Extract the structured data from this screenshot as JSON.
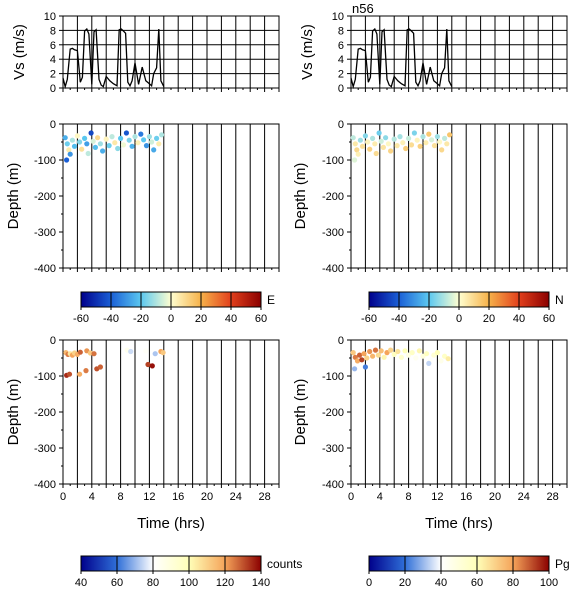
{
  "station_label": "n56",
  "labels": {
    "vs_ylabel": "Vs (m/s)",
    "depth_ylabel": "Depth (m)",
    "time_xlabel": "Time (hrs)"
  },
  "chart_data": [
    {
      "id": "vs-left",
      "type": "line",
      "xlim": [
        0,
        30
      ],
      "ylim": [
        0,
        10
      ],
      "yticks": [
        0,
        2,
        4,
        6,
        8,
        10
      ],
      "x": [
        0,
        0.3,
        0.6,
        1.0,
        1.3,
        1.6,
        2.0,
        2.4,
        2.7,
        3.0,
        3.3,
        3.6,
        4.0,
        4.3,
        4.6,
        5.0,
        5.3,
        5.6,
        6.0,
        6.5,
        7.0,
        7.5,
        7.8,
        8.1,
        8.4,
        8.7,
        9.0,
        9.3,
        9.6,
        10.0,
        10.5,
        11.0,
        11.5,
        12.0,
        12.3,
        12.6,
        13.0,
        13.3,
        13.6,
        14.0
      ],
      "y": [
        1.4,
        0.2,
        1.2,
        5.4,
        5.5,
        5.3,
        5.2,
        0.8,
        1.5,
        7.9,
        8.2,
        7.5,
        0.5,
        7.8,
        8.1,
        1.2,
        0.4,
        0.2,
        1.6,
        1.0,
        0.6,
        0.3,
        8.1,
        8.2,
        7.9,
        7.6,
        0.8,
        0.3,
        1.0,
        3.5,
        0.5,
        2.9,
        1.0,
        0.6,
        0.3,
        2.0,
        2.8,
        8.2,
        1.0,
        0.2
      ]
    },
    {
      "id": "vs-right",
      "type": "line",
      "xlim": [
        0,
        30
      ],
      "ylim": [
        0,
        10
      ],
      "yticks": [
        0,
        2,
        4,
        6,
        8,
        10
      ],
      "x": [
        0,
        0.3,
        0.6,
        1.0,
        1.3,
        1.6,
        2.0,
        2.4,
        2.7,
        3.0,
        3.3,
        3.6,
        4.0,
        4.3,
        4.6,
        5.0,
        5.3,
        5.6,
        6.0,
        6.5,
        7.0,
        7.5,
        7.8,
        8.1,
        8.4,
        8.7,
        9.0,
        9.3,
        9.6,
        10.0,
        10.5,
        11.0,
        11.5,
        12.0,
        12.3,
        12.6,
        13.0,
        13.3,
        13.6,
        14.0
      ],
      "y": [
        1.4,
        0.2,
        1.2,
        5.4,
        5.5,
        5.3,
        5.2,
        0.8,
        1.5,
        7.9,
        8.2,
        7.5,
        0.5,
        7.8,
        8.1,
        1.2,
        0.4,
        0.2,
        1.6,
        1.0,
        0.6,
        0.3,
        8.1,
        8.2,
        7.9,
        7.6,
        0.8,
        0.3,
        1.0,
        3.5,
        0.5,
        2.9,
        1.0,
        0.6,
        0.3,
        2.0,
        2.8,
        8.2,
        1.0,
        0.2
      ]
    },
    {
      "id": "depth-E",
      "type": "scatter",
      "xlim": [
        0,
        30
      ],
      "ylim": [
        -400,
        0
      ],
      "yticks": [
        -400,
        -300,
        -200,
        -100,
        0
      ],
      "colorbar": {
        "label": "E",
        "range": [
          -60,
          60
        ],
        "ticks": [
          -60,
          -40,
          -20,
          0,
          20,
          40,
          60
        ],
        "scheme": "diverging"
      },
      "points": [
        {
          "x": 0.3,
          "y": -38,
          "v": -25
        },
        {
          "x": 0.6,
          "y": -55,
          "v": -18
        },
        {
          "x": 0.8,
          "y": -72,
          "v": 5
        },
        {
          "x": 1.0,
          "y": -84,
          "v": -30
        },
        {
          "x": 0.5,
          "y": -100,
          "v": -40
        },
        {
          "x": 1.3,
          "y": -45,
          "v": -10
        },
        {
          "x": 1.6,
          "y": -62,
          "v": -22
        },
        {
          "x": 2.0,
          "y": -33,
          "v": 2
        },
        {
          "x": 2.3,
          "y": -50,
          "v": -15
        },
        {
          "x": 2.6,
          "y": -70,
          "v": 8
        },
        {
          "x": 3.0,
          "y": -40,
          "v": -20
        },
        {
          "x": 3.3,
          "y": -55,
          "v": -28
        },
        {
          "x": 3.5,
          "y": -82,
          "v": -8
        },
        {
          "x": 3.9,
          "y": -25,
          "v": -45
        },
        {
          "x": 4.2,
          "y": -48,
          "v": -5
        },
        {
          "x": 4.5,
          "y": -65,
          "v": -22
        },
        {
          "x": 4.8,
          "y": -38,
          "v": 10
        },
        {
          "x": 5.2,
          "y": -55,
          "v": -12
        },
        {
          "x": 5.5,
          "y": -75,
          "v": -25
        },
        {
          "x": 6.0,
          "y": -42,
          "v": 3
        },
        {
          "x": 6.4,
          "y": -60,
          "v": -18
        },
        {
          "x": 6.8,
          "y": -35,
          "v": -8
        },
        {
          "x": 7.2,
          "y": -52,
          "v": 6
        },
        {
          "x": 7.6,
          "y": -68,
          "v": -14
        },
        {
          "x": 8.0,
          "y": -40,
          "v": -20
        },
        {
          "x": 8.4,
          "y": -58,
          "v": -2
        },
        {
          "x": 8.8,
          "y": -25,
          "v": -42
        },
        {
          "x": 9.2,
          "y": -45,
          "v": -16
        },
        {
          "x": 9.6,
          "y": -62,
          "v": -24
        },
        {
          "x": 10.0,
          "y": -35,
          "v": -10
        },
        {
          "x": 10.4,
          "y": -52,
          "v": 4
        },
        {
          "x": 10.8,
          "y": -28,
          "v": -35
        },
        {
          "x": 11.2,
          "y": -44,
          "v": -20
        },
        {
          "x": 11.6,
          "y": -60,
          "v": -30
        },
        {
          "x": 12.0,
          "y": -35,
          "v": -12
        },
        {
          "x": 12.3,
          "y": -50,
          "v": -6
        },
        {
          "x": 12.6,
          "y": -72,
          "v": -26
        },
        {
          "x": 13.0,
          "y": -40,
          "v": -18
        },
        {
          "x": 13.3,
          "y": -55,
          "v": 5
        },
        {
          "x": 13.7,
          "y": -30,
          "v": -10
        }
      ]
    },
    {
      "id": "depth-N",
      "type": "scatter",
      "xlim": [
        0,
        30
      ],
      "ylim": [
        -400,
        0
      ],
      "yticks": [
        -400,
        -300,
        -200,
        -100,
        0
      ],
      "colorbar": {
        "label": "N",
        "range": [
          -60,
          60
        ],
        "ticks": [
          -60,
          -40,
          -20,
          0,
          20,
          40,
          60
        ],
        "scheme": "diverging"
      },
      "points": [
        {
          "x": 0.3,
          "y": -38,
          "v": -8
        },
        {
          "x": 0.6,
          "y": -55,
          "v": 6
        },
        {
          "x": 0.8,
          "y": -72,
          "v": 10
        },
        {
          "x": 1.0,
          "y": -84,
          "v": 4
        },
        {
          "x": 0.5,
          "y": -100,
          "v": -4
        },
        {
          "x": 1.3,
          "y": -45,
          "v": -12
        },
        {
          "x": 1.6,
          "y": -62,
          "v": 8
        },
        {
          "x": 2.0,
          "y": -33,
          "v": -15
        },
        {
          "x": 2.3,
          "y": -50,
          "v": 3
        },
        {
          "x": 2.6,
          "y": -70,
          "v": 12
        },
        {
          "x": 3.0,
          "y": -40,
          "v": -10
        },
        {
          "x": 3.3,
          "y": -55,
          "v": 5
        },
        {
          "x": 3.5,
          "y": -82,
          "v": 9
        },
        {
          "x": 3.9,
          "y": -25,
          "v": -18
        },
        {
          "x": 4.2,
          "y": -48,
          "v": -6
        },
        {
          "x": 4.5,
          "y": -65,
          "v": 7
        },
        {
          "x": 4.8,
          "y": -38,
          "v": -14
        },
        {
          "x": 5.2,
          "y": -55,
          "v": 2
        },
        {
          "x": 5.5,
          "y": -75,
          "v": 11
        },
        {
          "x": 6.0,
          "y": -42,
          "v": -9
        },
        {
          "x": 6.4,
          "y": -60,
          "v": 6
        },
        {
          "x": 6.8,
          "y": -35,
          "v": -11
        },
        {
          "x": 7.2,
          "y": -52,
          "v": 4
        },
        {
          "x": 7.6,
          "y": -68,
          "v": 13
        },
        {
          "x": 8.0,
          "y": -40,
          "v": -7
        },
        {
          "x": 8.4,
          "y": -58,
          "v": 9
        },
        {
          "x": 8.8,
          "y": -25,
          "v": -16
        },
        {
          "x": 9.2,
          "y": -45,
          "v": 3
        },
        {
          "x": 9.6,
          "y": -62,
          "v": 12
        },
        {
          "x": 10.0,
          "y": -35,
          "v": -10
        },
        {
          "x": 10.4,
          "y": -52,
          "v": 5
        },
        {
          "x": 10.8,
          "y": -28,
          "v": 14
        },
        {
          "x": 11.2,
          "y": -44,
          "v": -5
        },
        {
          "x": 11.6,
          "y": -60,
          "v": 8
        },
        {
          "x": 12.0,
          "y": -35,
          "v": -12
        },
        {
          "x": 12.3,
          "y": -50,
          "v": 2
        },
        {
          "x": 12.6,
          "y": -72,
          "v": 10
        },
        {
          "x": 13.0,
          "y": -40,
          "v": -8
        },
        {
          "x": 13.3,
          "y": -55,
          "v": 6
        },
        {
          "x": 13.7,
          "y": -30,
          "v": 15
        }
      ]
    },
    {
      "id": "depth-counts",
      "type": "scatter",
      "xlim": [
        0,
        30
      ],
      "ylim": [
        -400,
        0
      ],
      "yticks": [
        -400,
        -300,
        -200,
        -100,
        0
      ],
      "xticks": [
        0,
        4,
        8,
        12,
        16,
        20,
        24,
        28
      ],
      "colorbar": {
        "label": "counts",
        "range": [
          40,
          140
        ],
        "ticks": [
          40,
          60,
          80,
          100,
          120,
          140
        ],
        "scheme": "sequential"
      },
      "points": [
        {
          "x": 0.4,
          "y": -35,
          "v": 115
        },
        {
          "x": 0.7,
          "y": -40,
          "v": 125
        },
        {
          "x": 1.0,
          "y": -38,
          "v": 105
        },
        {
          "x": 1.3,
          "y": -42,
          "v": 120
        },
        {
          "x": 1.6,
          "y": -36,
          "v": 110
        },
        {
          "x": 2.0,
          "y": -40,
          "v": 118
        },
        {
          "x": 2.4,
          "y": -34,
          "v": 128
        },
        {
          "x": 0.5,
          "y": -98,
          "v": 135
        },
        {
          "x": 0.9,
          "y": -95,
          "v": 130
        },
        {
          "x": 3.3,
          "y": -30,
          "v": 122
        },
        {
          "x": 3.8,
          "y": -36,
          "v": 112
        },
        {
          "x": 4.3,
          "y": -38,
          "v": 126
        },
        {
          "x": 4.7,
          "y": -80,
          "v": 130
        },
        {
          "x": 3.2,
          "y": -85,
          "v": 125
        },
        {
          "x": 2.3,
          "y": -95,
          "v": 118
        },
        {
          "x": 5.2,
          "y": -75,
          "v": 128
        },
        {
          "x": 8.9,
          "y": -28,
          "v": 85
        },
        {
          "x": 9.4,
          "y": -32,
          "v": 75
        },
        {
          "x": 11.5,
          "y": -30,
          "v": 82
        },
        {
          "x": 11.8,
          "y": -68,
          "v": 132
        },
        {
          "x": 12.4,
          "y": -72,
          "v": 138
        },
        {
          "x": 13.6,
          "y": -32,
          "v": 120
        },
        {
          "x": 13.9,
          "y": -35,
          "v": 112
        },
        {
          "x": 12.8,
          "y": -38,
          "v": 72
        }
      ]
    },
    {
      "id": "depth-Pg",
      "type": "scatter",
      "xlim": [
        0,
        30
      ],
      "ylim": [
        -400,
        0
      ],
      "yticks": [
        -400,
        -300,
        -200,
        -100,
        0
      ],
      "xticks": [
        0,
        4,
        8,
        12,
        16,
        20,
        24,
        28
      ],
      "colorbar": {
        "label": "Pg",
        "range": [
          0,
          100
        ],
        "ticks": [
          0,
          20,
          40,
          60,
          80,
          100
        ],
        "scheme": "sequential"
      },
      "points": [
        {
          "x": 0.3,
          "y": -35,
          "v": 72
        },
        {
          "x": 0.6,
          "y": -48,
          "v": 85
        },
        {
          "x": 0.9,
          "y": -58,
          "v": 78
        },
        {
          "x": 1.2,
          "y": -42,
          "v": 88
        },
        {
          "x": 1.5,
          "y": -55,
          "v": 92
        },
        {
          "x": 1.8,
          "y": -38,
          "v": 80
        },
        {
          "x": 2.2,
          "y": -50,
          "v": 70
        },
        {
          "x": 2.6,
          "y": -32,
          "v": 82
        },
        {
          "x": 3.0,
          "y": -45,
          "v": 76
        },
        {
          "x": 3.4,
          "y": -28,
          "v": 86
        },
        {
          "x": 3.8,
          "y": -42,
          "v": 68
        },
        {
          "x": 4.2,
          "y": -30,
          "v": 74
        },
        {
          "x": 4.6,
          "y": -48,
          "v": 62
        },
        {
          "x": 5.0,
          "y": -35,
          "v": 80
        },
        {
          "x": 5.5,
          "y": -28,
          "v": 70
        },
        {
          "x": 6.0,
          "y": -40,
          "v": 58
        },
        {
          "x": 6.5,
          "y": -32,
          "v": 66
        },
        {
          "x": 7.0,
          "y": -48,
          "v": 54
        },
        {
          "x": 7.5,
          "y": -30,
          "v": 60
        },
        {
          "x": 8.0,
          "y": -42,
          "v": 48
        },
        {
          "x": 8.5,
          "y": -35,
          "v": 56
        },
        {
          "x": 9.0,
          "y": -50,
          "v": 44
        },
        {
          "x": 9.5,
          "y": -30,
          "v": 62
        },
        {
          "x": 10.0,
          "y": -45,
          "v": 50
        },
        {
          "x": 10.5,
          "y": -38,
          "v": 58
        },
        {
          "x": 11.0,
          "y": -55,
          "v": 42
        },
        {
          "x": 11.5,
          "y": -42,
          "v": 52
        },
        {
          "x": 12.0,
          "y": -35,
          "v": 60
        },
        {
          "x": 12.5,
          "y": -58,
          "v": 46
        },
        {
          "x": 13.0,
          "y": -45,
          "v": 56
        },
        {
          "x": 13.5,
          "y": -52,
          "v": 64
        },
        {
          "x": 0.5,
          "y": -80,
          "v": 30
        },
        {
          "x": 2.0,
          "y": -75,
          "v": 22
        },
        {
          "x": 10.8,
          "y": -65,
          "v": 34
        }
      ]
    }
  ]
}
